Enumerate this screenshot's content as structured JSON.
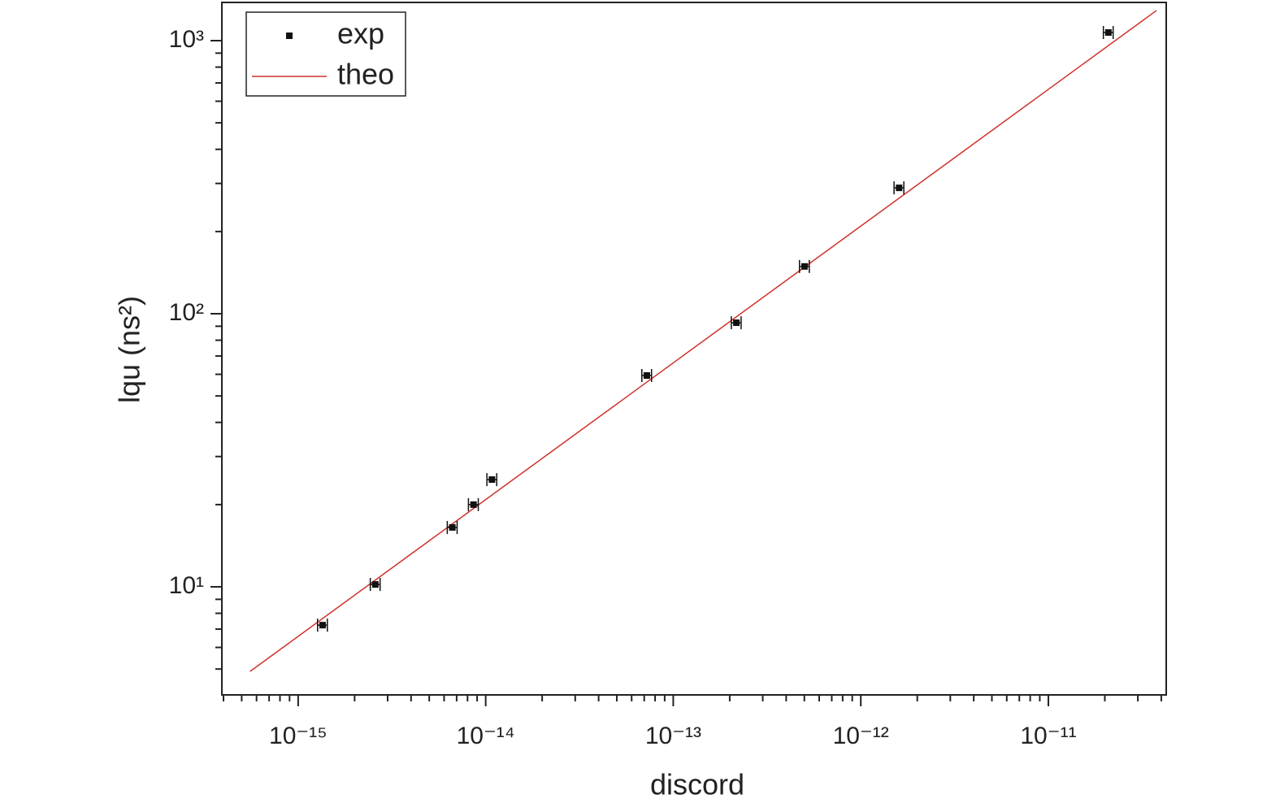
{
  "chart_data": {
    "type": "scatter",
    "x_label": "discord",
    "y_label": "lqu (ns²)",
    "log_x": true,
    "log_y": true,
    "minor_ticks": true,
    "legend": "upper left",
    "xlim": [
      3.92e-16,
      4.25e-11
    ],
    "ylim": [
      4.02,
      1380
    ],
    "xticks": [
      {
        "value": 1e-15,
        "label": "10⁻¹⁵"
      },
      {
        "value": 1e-14,
        "label": "10⁻¹⁴"
      },
      {
        "value": 1e-13,
        "label": "10⁻¹³"
      },
      {
        "value": 1e-12,
        "label": "10⁻¹²"
      },
      {
        "value": 1e-11,
        "label": "10⁻¹¹"
      }
    ],
    "yticks": [
      {
        "value": 10,
        "label": "10¹"
      },
      {
        "value": 100,
        "label": "10²"
      },
      {
        "value": 1000,
        "label": "10³"
      }
    ],
    "series": [
      {
        "name": "exp",
        "color": "#111111",
        "kind": "points",
        "x": [
          1.35e-15,
          2.58e-15,
          6.64e-15,
          8.61e-15,
          1.08e-14,
          7.23e-14,
          2.17e-13,
          5.01e-13,
          1.6e-12,
          2.09e-11
        ],
        "xerr": [
          8.1e-17,
          1.55e-16,
          4e-16,
          5.2e-16,
          6.5e-16,
          4.3e-15,
          1.3e-14,
          3e-14,
          9.6e-14,
          1.25e-12
        ],
        "values": [
          7.24,
          10.2,
          16.5,
          20.0,
          24.7,
          59.4,
          92.7,
          149,
          289,
          1071
        ]
      },
      {
        "name": "theo",
        "color": "#d0302b",
        "kind": "line",
        "x": [
          5.54e-16,
          3.77e-11
        ],
        "values": [
          4.9,
          1289
        ]
      }
    ]
  }
}
